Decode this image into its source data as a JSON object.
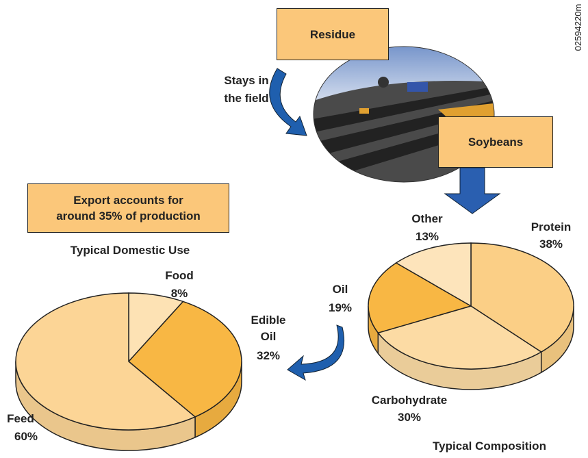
{
  "labels": {
    "residue": "Residue",
    "soybeans": "Soybeans",
    "stays": [
      "Stays in",
      "the field"
    ],
    "export_note": [
      "Export accounts for",
      "around 35% of production"
    ],
    "code": "02594220m"
  },
  "chart_data": [
    {
      "type": "pie",
      "title": "Typical Domestic Use",
      "categories": [
        "Food",
        "Edible Oil",
        "Feed"
      ],
      "values": [
        8,
        32,
        60
      ],
      "value_labels": [
        "8%",
        "32%",
        "60%"
      ],
      "colors": [
        "#fde2b4",
        "#f8b744",
        "#fcd596"
      ]
    },
    {
      "type": "pie",
      "title": "Typical Composition",
      "categories": [
        "Protein",
        "Carbohydrate",
        "Oil",
        "Other"
      ],
      "values": [
        38,
        30,
        19,
        13
      ],
      "value_labels": [
        "38%",
        "30%",
        "19%",
        "13%"
      ],
      "colors": [
        "#fbcf86",
        "#fcdba4",
        "#f8b744",
        "#fde4bb"
      ]
    }
  ]
}
